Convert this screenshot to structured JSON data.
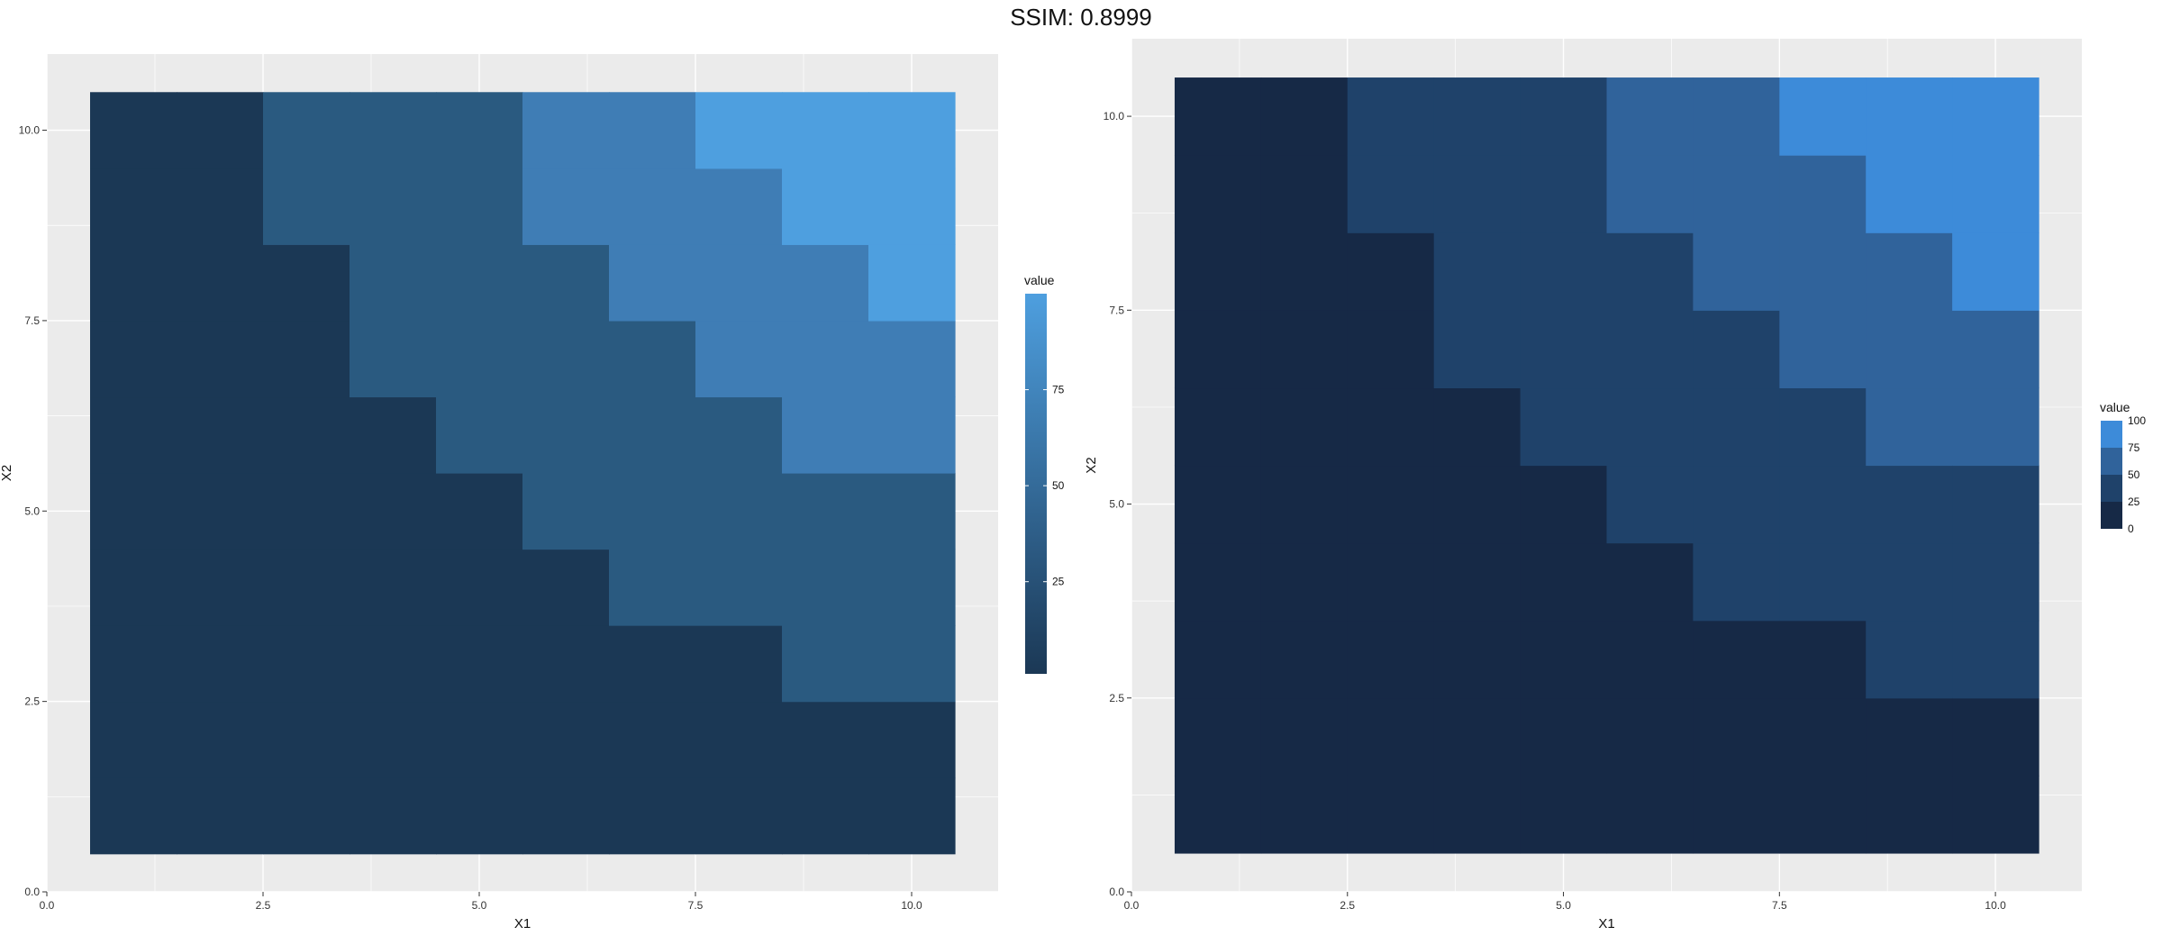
{
  "header": {
    "title": "SSIM: 0.8999"
  },
  "chart_data": [
    {
      "type": "heatmap",
      "panel": "left",
      "title": "",
      "xlabel": "X1",
      "ylabel": "X2",
      "xlim": [
        0,
        11
      ],
      "ylim": [
        0,
        11
      ],
      "x_ticks": [
        "0.0",
        "2.5",
        "5.0",
        "7.5",
        "10.0"
      ],
      "y_ticks": [
        "0.0",
        "2.5",
        "5.0",
        "7.5",
        "10.0"
      ],
      "legend": {
        "title": "value",
        "type": "continuous",
        "ticks": [
          "25",
          "50",
          "75"
        ],
        "range": [
          1,
          100
        ],
        "low_color": "#1b3855",
        "high_color": "#4e9fdf"
      },
      "grid": true,
      "data_rule": "value = X1 * X2 for X1, X2 in 1..10",
      "x": [
        1,
        2,
        3,
        4,
        5,
        6,
        7,
        8,
        9,
        10
      ],
      "y": [
        1,
        2,
        3,
        4,
        5,
        6,
        7,
        8,
        9,
        10
      ],
      "levels": [
        1,
        25,
        50,
        75
      ],
      "level_colors": [
        "#1b3855",
        "#2a5a80",
        "#3f7db5",
        "#4e9fdf"
      ]
    },
    {
      "type": "heatmap",
      "panel": "right",
      "title": "",
      "xlabel": "X1",
      "ylabel": "X2",
      "xlim": [
        0,
        11
      ],
      "ylim": [
        0,
        11
      ],
      "x_ticks": [
        "0.0",
        "2.5",
        "5.0",
        "7.5",
        "10.0"
      ],
      "y_ticks": [
        "0.0",
        "2.5",
        "5.0",
        "7.5",
        "10.0"
      ],
      "legend": {
        "title": "value",
        "type": "binned",
        "ticks": [
          "100",
          "75",
          "50",
          "25",
          "0"
        ],
        "colors": [
          "#3d8bd9",
          "#30639b",
          "#1f426a",
          "#162946"
        ]
      },
      "grid": true,
      "data_rule": "value = X1 * X2 for X1, X2 in 1..10",
      "x": [
        1,
        2,
        3,
        4,
        5,
        6,
        7,
        8,
        9,
        10
      ],
      "y": [
        1,
        2,
        3,
        4,
        5,
        6,
        7,
        8,
        9,
        10
      ],
      "levels": [
        0,
        25,
        50,
        75
      ],
      "level_colors": [
        "#162946",
        "#1f426a",
        "#30639b",
        "#3d8bd9"
      ]
    }
  ]
}
